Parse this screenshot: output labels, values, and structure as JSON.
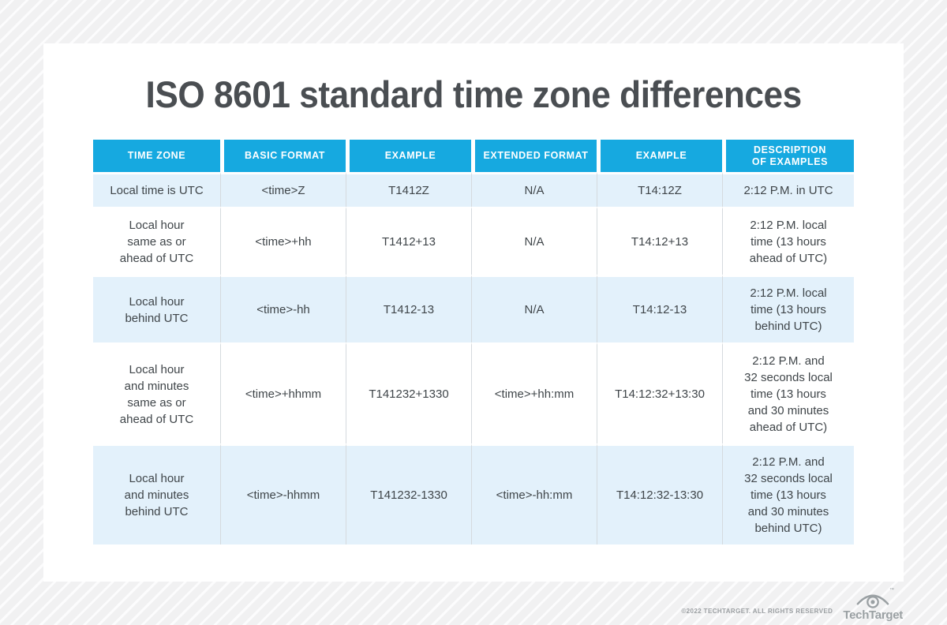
{
  "title": "ISO 8601 standard time zone differences",
  "chart_data": {
    "type": "table",
    "title": "ISO 8601 standard time zone differences",
    "headers": [
      "TIME ZONE",
      "BASIC FORMAT",
      "EXAMPLE",
      "EXTENDED FORMAT",
      "EXAMPLE",
      "DESCRIPTION\nOF EXAMPLES"
    ],
    "rows": [
      [
        "Local time is UTC",
        "<time>Z",
        "T1412Z",
        "N/A",
        "T14:12Z",
        "2:12 P.M. in UTC"
      ],
      [
        "Local hour\nsame as or\nahead of UTC",
        "<time>+hh",
        "T1412+13",
        "N/A",
        "T14:12+13",
        "2:12 P.M. local\ntime (13 hours\nahead of UTC)"
      ],
      [
        "Local hour\nbehind UTC",
        "<time>-hh",
        "T1412-13",
        "N/A",
        "T14:12-13",
        "2:12 P.M. local\ntime (13 hours\nbehind UTC)"
      ],
      [
        "Local hour\nand minutes\nsame as or\nahead of UTC",
        "<time>+hhmm",
        "T141232+1330",
        "<time>+hh:mm",
        "T14:12:32+13:30",
        "2:12 P.M. and\n32 seconds local\ntime (13 hours\nand 30 minutes\nahead of UTC)"
      ],
      [
        "Local hour\nand minutes\nbehind UTC",
        "<time>-hhmm",
        "T141232-1330",
        "<time>-hh:mm",
        "T14:12:32-13:30",
        "2:12 P.M. and\n32 seconds local\ntime (13 hours\nand 30 minutes\nbehind UTC)"
      ]
    ],
    "layout": {
      "header_position": "top",
      "row_striping": "odd rows light blue, even rows white"
    }
  },
  "footer": {
    "copyright": "©2022 TECHTARGET. ALL RIGHTS RESERVED",
    "logo_text": "TechTarget",
    "trademark": "™",
    "logo_icon": "eye-icon"
  },
  "colors": {
    "header_bg": "#16a9e0",
    "header_text": "#ffffff",
    "row_alt_bg": "#e3f1fb",
    "row_bg": "#ffffff",
    "cell_divider": "#d5dade",
    "title_text": "#4a4e52",
    "body_text": "#3f4549",
    "footer_text": "#9a9ea1",
    "page_bg": "#f1f1f2"
  }
}
